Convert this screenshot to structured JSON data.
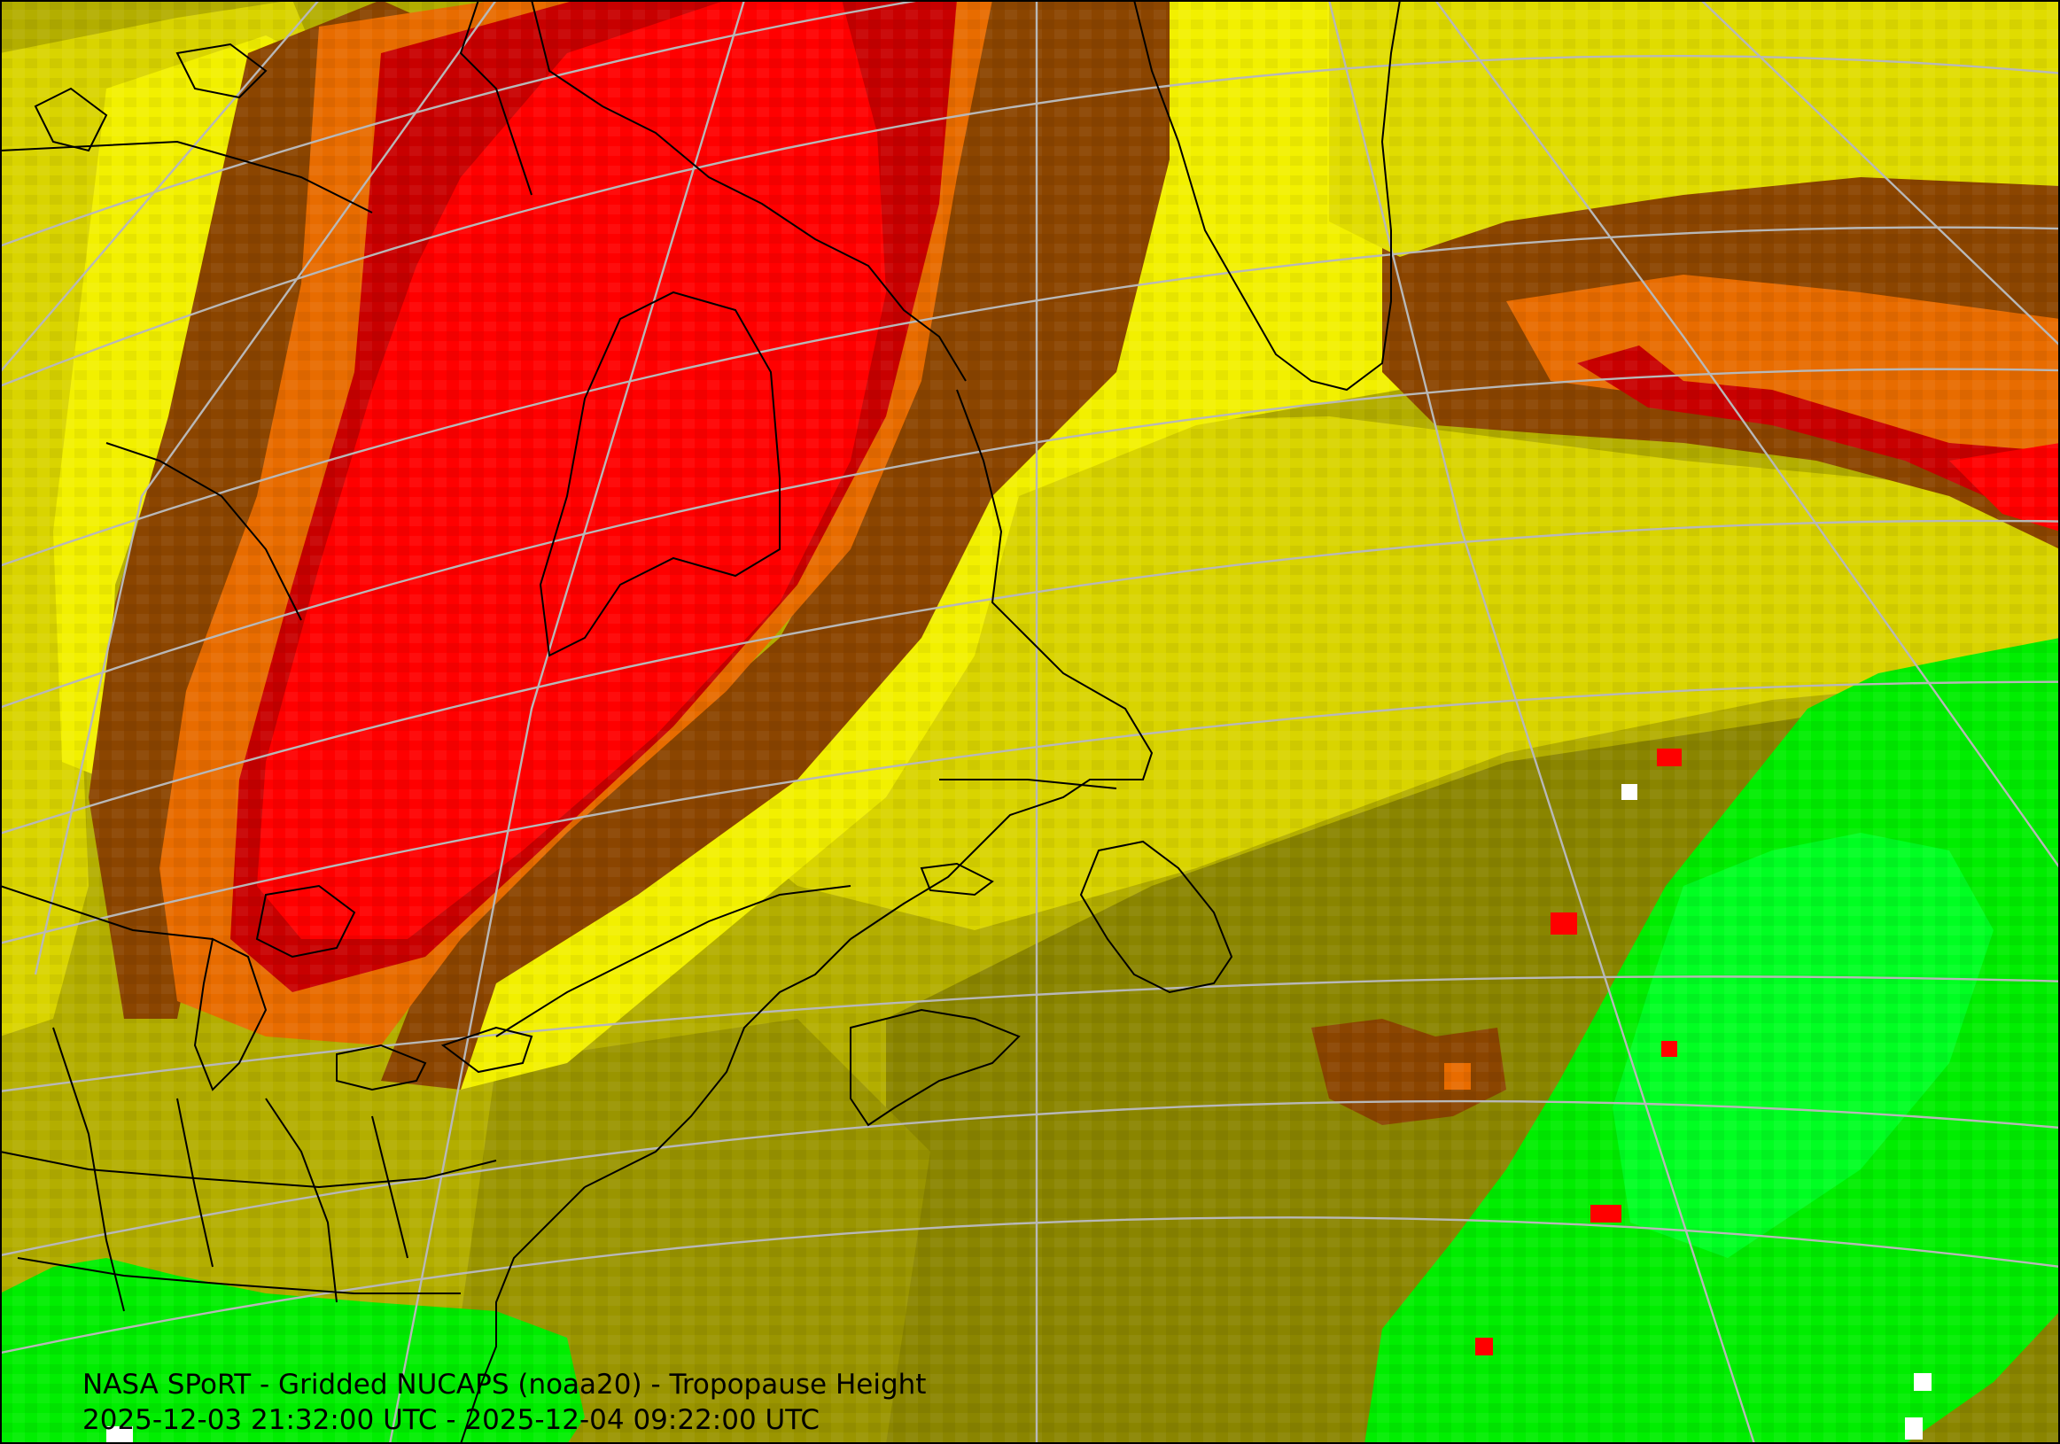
{
  "caption": {
    "line1": "NASA SPoRT - Gridded NUCAPS (noaa20) - Tropopause Height",
    "line2": "2025-12-03 21:32:00 UTC - 2025-12-04 09:22:00 UTC"
  },
  "colors": {
    "olive_dark": "#8a8500",
    "olive": "#b3ae00",
    "yellow_olive": "#d9d400",
    "yellow": "#f2f000",
    "brown": "#8b4500",
    "orange": "#e86c00",
    "dark_red": "#c80000",
    "red": "#ff0000",
    "green": "#00ee00",
    "green_bright": "#00ff22",
    "gridline": "#b8b8b8",
    "coastline": "#000000",
    "frame": "#000000"
  }
}
